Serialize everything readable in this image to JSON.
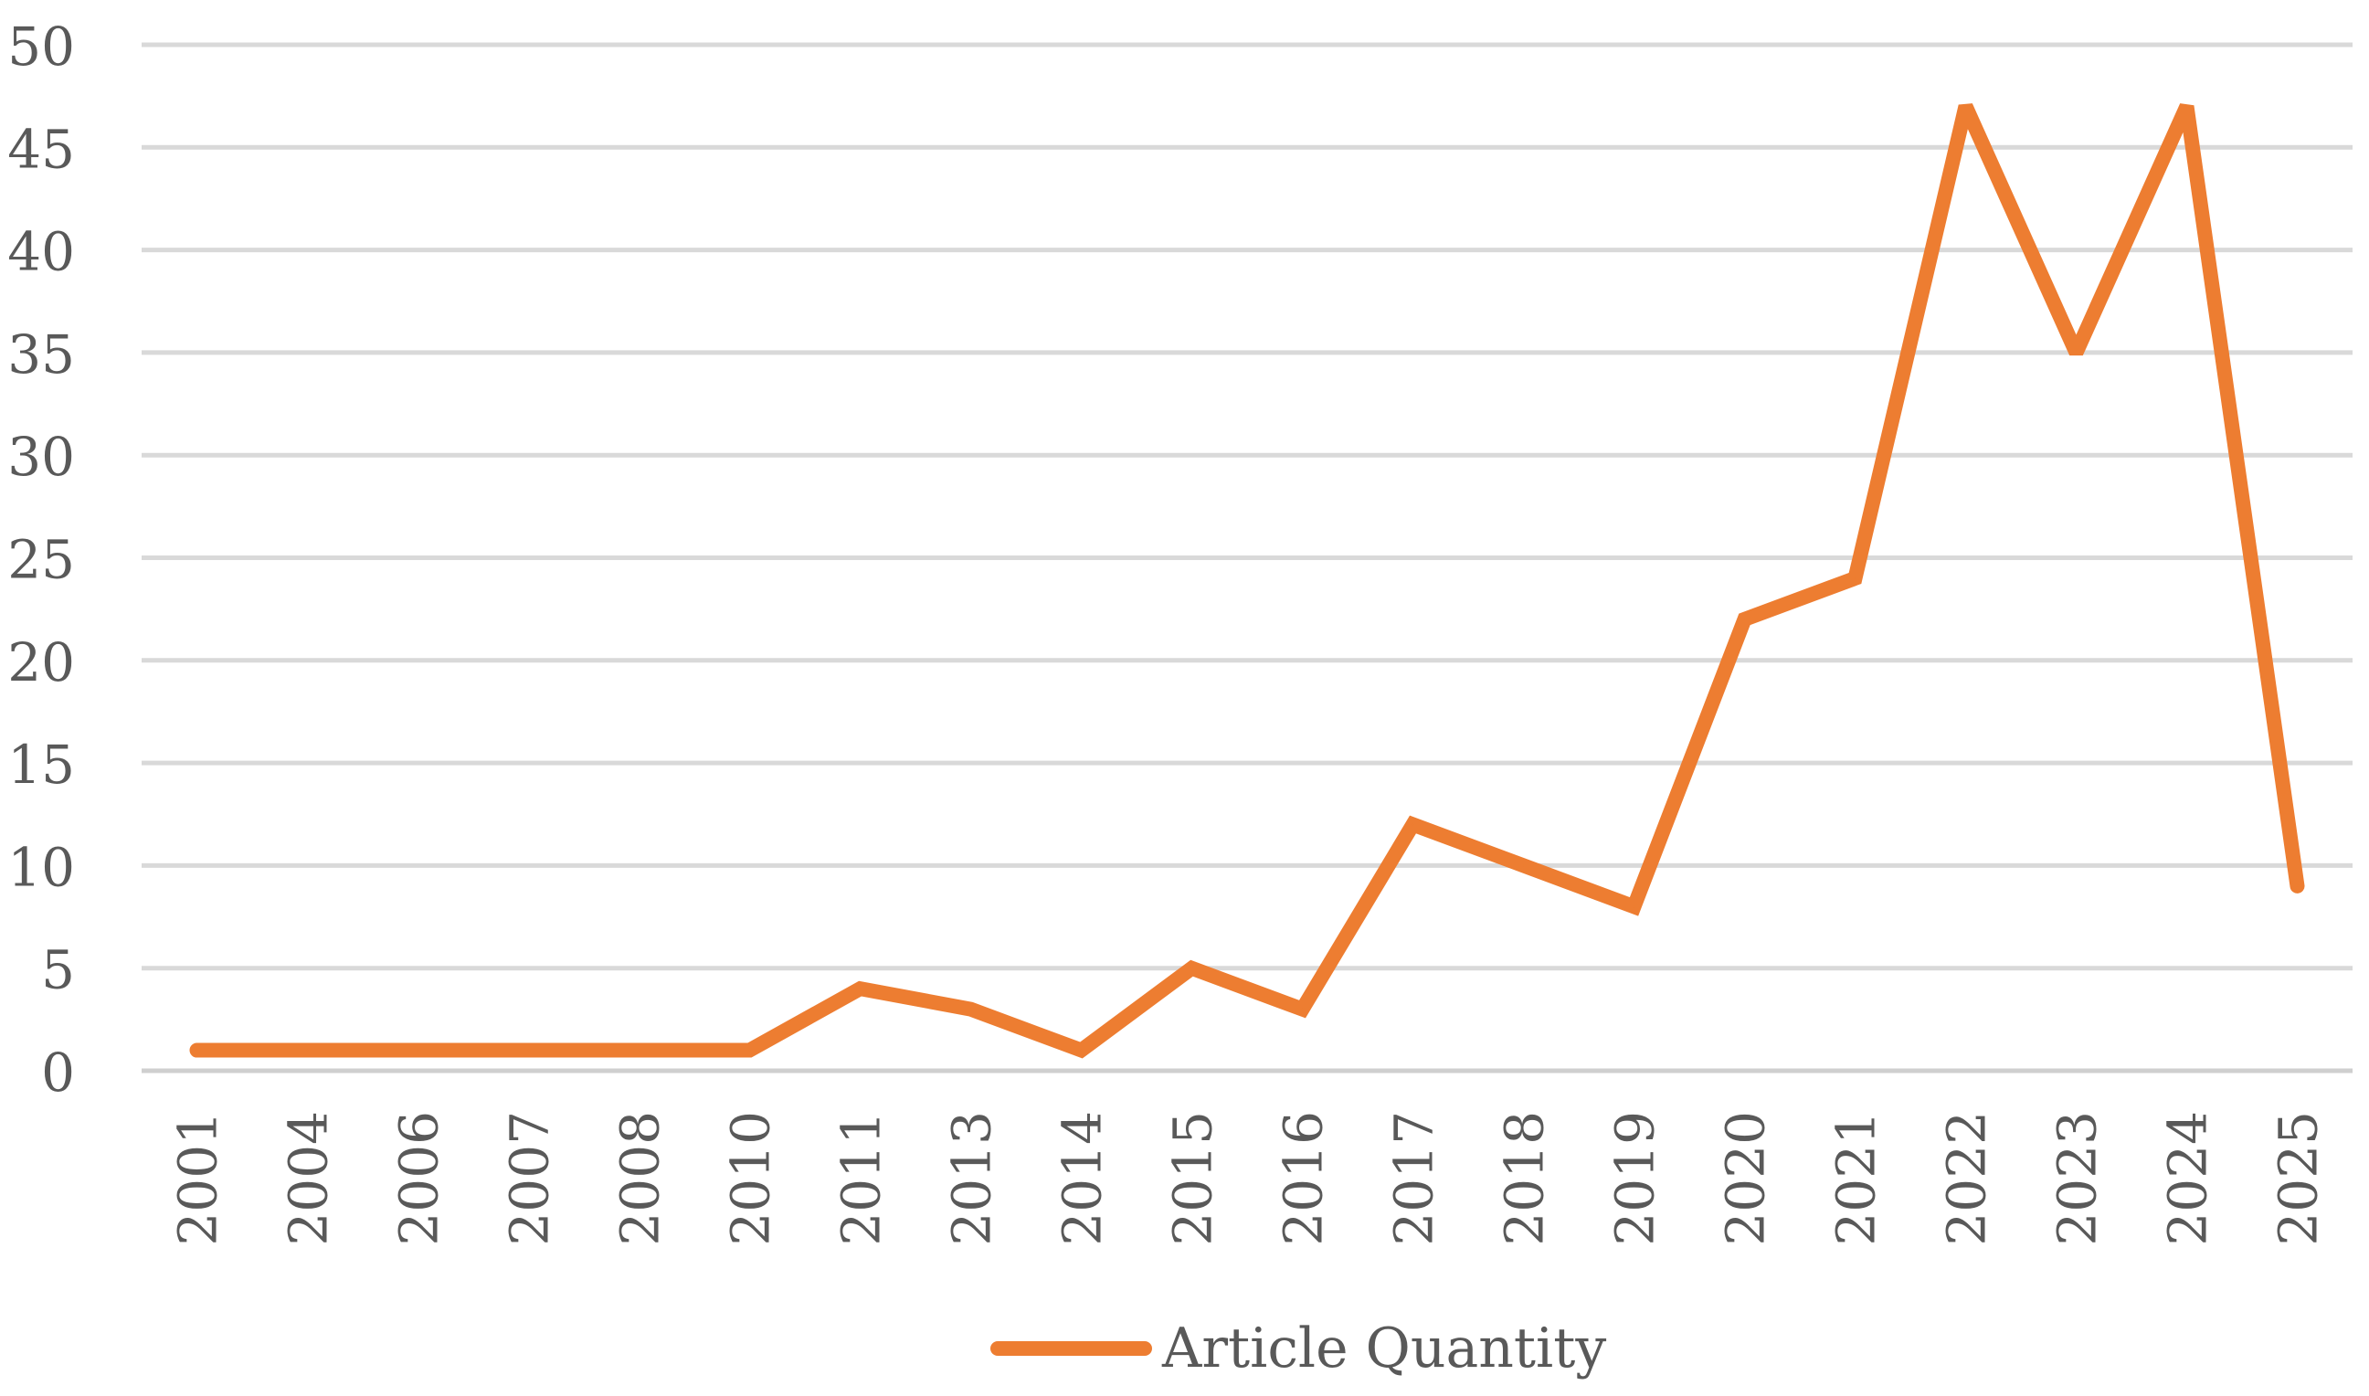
{
  "chart_data": {
    "type": "line",
    "title": "",
    "xlabel": "",
    "ylabel": "",
    "categories": [
      "2001",
      "2004",
      "2006",
      "2007",
      "2008",
      "2010",
      "2011",
      "2013",
      "2014",
      "2015",
      "2016",
      "2017",
      "2018",
      "2019",
      "2020",
      "2021",
      "2022",
      "2023",
      "2024",
      "2025"
    ],
    "series": [
      {
        "name": "Article Quantity",
        "color": "#ED7D31",
        "values": [
          1,
          1,
          1,
          1,
          1,
          1,
          4,
          3,
          1,
          5,
          3,
          12,
          10,
          8,
          22,
          24,
          47,
          35,
          47,
          9
        ]
      }
    ],
    "ylim": [
      0,
      50
    ],
    "yticks": [
      0,
      5,
      10,
      15,
      20,
      25,
      30,
      35,
      40,
      45,
      50
    ],
    "grid": "horizontal",
    "gridline_color": "#d9d9d9",
    "axis_color": "#d9d9d9",
    "text_color": "#595959",
    "legend_position": "bottom"
  }
}
